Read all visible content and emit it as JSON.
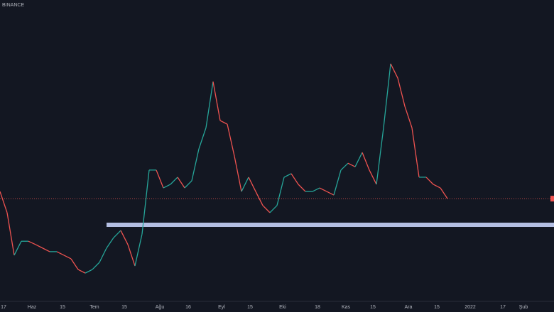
{
  "chart_data": {
    "type": "line",
    "title": "BINANCE",
    "values": [
      35.7,
      28.6,
      14.3,
      19.0,
      19.0,
      17.9,
      16.7,
      15.5,
      15.5,
      14.3,
      13.1,
      9.5,
      8.3,
      9.5,
      11.9,
      16.7,
      20.2,
      22.6,
      17.9,
      10.7,
      21.4,
      42.9,
      42.9,
      36.9,
      38.1,
      40.5,
      36.9,
      39.3,
      50.0,
      57.1,
      72.6,
      59.5,
      58.3,
      47.6,
      35.7,
      40.5,
      35.7,
      31.0,
      28.6,
      31.0,
      40.5,
      41.7,
      38.1,
      35.7,
      35.7,
      36.9,
      35.7,
      34.5,
      42.9,
      45.2,
      44.0,
      48.8,
      42.9,
      38.1,
      57.1,
      78.6,
      73.8,
      64.3,
      57.1,
      40.5,
      40.5,
      38.1,
      36.9,
      33.3
    ],
    "x_labels": [
      "17",
      "Haz",
      "15",
      "Tem",
      "15",
      "Ağu",
      "16",
      "Eyl",
      "15",
      "Eki",
      "18",
      "Kas",
      "15",
      "Ara",
      "15",
      "2022",
      "17",
      "Şub"
    ],
    "ylim": [
      0,
      100
    ],
    "up_color": "#26a69a",
    "down_color": "#ef5350"
  }
}
